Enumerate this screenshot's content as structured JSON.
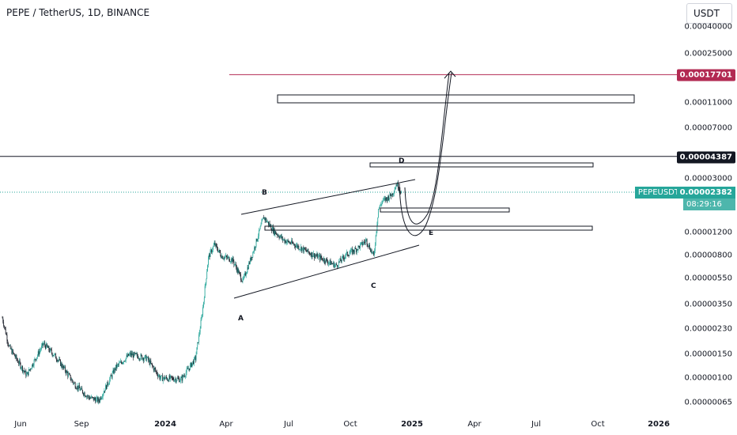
{
  "header": {
    "title": "PEPE / TetherUS, 1D, BINANCE",
    "currency": "USDT"
  },
  "colors": {
    "up": "#26a69a",
    "down": "#131722",
    "red_line": "#b22a52",
    "black_line": "#131722",
    "current": "#26a69a"
  },
  "chart_data": {
    "type": "candlestick",
    "symbol": "PEPEUSDT",
    "scale": "log",
    "y_ticks": [
      "0.00040000",
      "0.00025000",
      "0.00011000",
      "0.00007000",
      "0.00003000",
      "0.00001200",
      "0.00000800",
      "0.00000550",
      "0.00000350",
      "0.00000230",
      "0.00000150",
      "0.00000100",
      "0.00000065"
    ],
    "x_ticks": [
      {
        "label": "Jun",
        "date": "2023-06-01"
      },
      {
        "label": "Sep",
        "date": "2023-09-01"
      },
      {
        "label": "2024",
        "date": "2024-01-01",
        "bold": true
      },
      {
        "label": "Apr",
        "date": "2024-04-01"
      },
      {
        "label": "Jul",
        "date": "2024-07-01"
      },
      {
        "label": "Oct",
        "date": "2024-10-01"
      },
      {
        "label": "2025",
        "date": "2025-01-01",
        "bold": true
      },
      {
        "label": "Apr",
        "date": "2025-04-01"
      },
      {
        "label": "Jul",
        "date": "2025-07-01"
      },
      {
        "label": "Oct",
        "date": "2025-10-01"
      },
      {
        "label": "2026",
        "date": "2026-01-01",
        "bold": true
      }
    ],
    "price_path": [
      [
        "2023-05-05",
        2.8e-06
      ],
      [
        "2023-05-15",
        1.7e-06
      ],
      [
        "2023-06-10",
        1.05e-06
      ],
      [
        "2023-07-05",
        1.8e-06
      ],
      [
        "2023-07-25",
        1.4e-06
      ],
      [
        "2023-08-20",
        9e-07
      ],
      [
        "2023-09-10",
        7.2e-07
      ],
      [
        "2023-09-25",
        6.8e-07
      ],
      [
        "2023-10-20",
        1.2e-06
      ],
      [
        "2023-11-10",
        1.5e-06
      ],
      [
        "2023-12-05",
        1.4e-06
      ],
      [
        "2023-12-25",
        1e-06
      ],
      [
        "2024-01-25",
        9.8e-07
      ],
      [
        "2024-02-15",
        1.4e-06
      ],
      [
        "2024-02-25",
        3e-06
      ],
      [
        "2024-03-05",
        7.8e-06
      ],
      [
        "2024-03-14",
        9.8e-06
      ],
      [
        "2024-03-25",
        8e-06
      ],
      [
        "2024-04-10",
        7.5e-06
      ],
      [
        "2024-04-25",
        5.2e-06
      ],
      [
        "2024-05-10",
        8.5e-06
      ],
      [
        "2024-05-26",
        1.56e-05
      ],
      [
        "2024-06-10",
        1.23e-05
      ],
      [
        "2024-06-25",
        1.05e-05
      ],
      [
        "2024-07-10",
        9.8e-06
      ],
      [
        "2024-08-05",
        8.3e-06
      ],
      [
        "2024-08-20",
        7.7e-06
      ],
      [
        "2024-09-10",
        6.8e-06
      ],
      [
        "2024-09-25",
        8.2e-06
      ],
      [
        "2024-10-10",
        9e-06
      ],
      [
        "2024-10-25",
        1.05e-05
      ],
      [
        "2024-11-05",
        8e-06
      ],
      [
        "2024-11-12",
        1.8e-05
      ],
      [
        "2024-11-18",
        2.05e-05
      ],
      [
        "2024-11-25",
        2.15e-05
      ],
      [
        "2024-12-02",
        2.3e-05
      ],
      [
        "2024-12-09",
        2.75e-05
      ],
      [
        "2024-12-16",
        2.38e-05
      ]
    ],
    "horizontal_lines": [
      {
        "value": 0.00017701,
        "label": "0.00017701",
        "color": "red"
      },
      {
        "value": 4.387e-05,
        "label": "0.00004387",
        "color": "black"
      }
    ],
    "current_price": {
      "label": "PEPEUSDT",
      "value": "0.00002382",
      "countdown": "08:29:16"
    },
    "annotations": [
      "A",
      "B",
      "C",
      "D",
      "E"
    ]
  }
}
